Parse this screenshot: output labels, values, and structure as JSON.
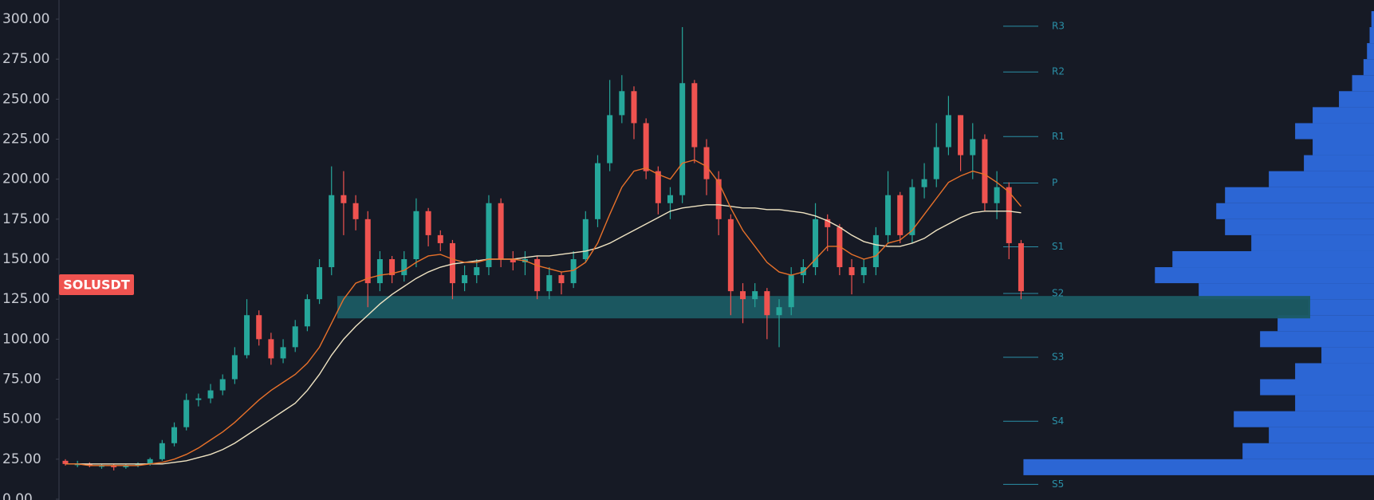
{
  "chart_data": {
    "type": "candlestick",
    "symbol_label": "SOLUSDT",
    "ylim": [
      0,
      300
    ],
    "yticks": [
      {
        "value": 0,
        "label": "0.00"
      },
      {
        "value": 25,
        "label": "25.00"
      },
      {
        "value": 50,
        "label": "50.00"
      },
      {
        "value": 75,
        "label": "75.00"
      },
      {
        "value": 100,
        "label": "100.00"
      },
      {
        "value": 125,
        "label": "125.00"
      },
      {
        "value": 150,
        "label": "150.00"
      },
      {
        "value": 175,
        "label": "175.00"
      },
      {
        "value": 200,
        "label": "200.00"
      },
      {
        "value": 225,
        "label": "225.00"
      },
      {
        "value": 250,
        "label": "250.00"
      },
      {
        "value": 275,
        "label": "275.00"
      },
      {
        "value": 300,
        "label": "300.00"
      }
    ],
    "up_color": "#26a69a",
    "down_color": "#ef5350",
    "open": [
      24,
      22,
      22,
      21,
      21,
      20,
      21,
      22,
      25,
      35,
      45,
      62,
      63,
      68,
      75,
      90,
      115,
      100,
      88,
      95,
      108,
      125,
      145,
      190,
      185,
      175,
      135,
      150,
      140,
      150,
      180,
      165,
      160,
      135,
      140,
      145,
      185,
      150,
      148,
      150,
      130,
      140,
      135,
      150,
      175,
      210,
      240,
      255,
      235,
      205,
      185,
      190,
      260,
      220,
      200,
      175,
      130,
      125,
      130,
      115,
      120,
      140,
      145,
      175,
      170,
      145,
      140,
      145,
      165,
      190,
      165,
      195,
      200,
      220,
      240,
      215,
      225,
      185,
      195,
      160
    ],
    "high": [
      25,
      24,
      23,
      22,
      22,
      22,
      23,
      26,
      37,
      48,
      66,
      66,
      72,
      78,
      95,
      125,
      118,
      104,
      100,
      112,
      128,
      150,
      208,
      205,
      190,
      180,
      155,
      152,
      155,
      188,
      182,
      168,
      162,
      146,
      150,
      190,
      188,
      155,
      155,
      152,
      145,
      142,
      155,
      180,
      215,
      262,
      265,
      258,
      238,
      208,
      195,
      295,
      262,
      225,
      205,
      178,
      135,
      135,
      132,
      125,
      145,
      150,
      185,
      178,
      172,
      150,
      150,
      170,
      205,
      192,
      200,
      210,
      235,
      252,
      240,
      235,
      228,
      205,
      198,
      162
    ],
    "low": [
      21,
      20,
      20,
      19,
      18,
      19,
      20,
      21,
      24,
      33,
      43,
      58,
      60,
      65,
      72,
      88,
      96,
      84,
      85,
      92,
      105,
      122,
      140,
      165,
      168,
      120,
      130,
      135,
      136,
      145,
      158,
      155,
      125,
      130,
      135,
      140,
      145,
      143,
      140,
      125,
      125,
      128,
      132,
      148,
      170,
      205,
      235,
      225,
      200,
      178,
      175,
      185,
      210,
      190,
      165,
      115,
      110,
      120,
      100,
      95,
      115,
      135,
      140,
      155,
      140,
      128,
      135,
      140,
      160,
      160,
      160,
      188,
      195,
      215,
      205,
      200,
      180,
      175,
      150,
      125
    ],
    "close": [
      22,
      22,
      21,
      21,
      20,
      21,
      22,
      25,
      35,
      45,
      62,
      63,
      68,
      75,
      90,
      115,
      100,
      88,
      95,
      108,
      125,
      145,
      190,
      185,
      175,
      135,
      150,
      140,
      150,
      180,
      165,
      160,
      135,
      140,
      145,
      185,
      150,
      148,
      150,
      130,
      140,
      135,
      150,
      175,
      210,
      240,
      255,
      235,
      205,
      185,
      190,
      260,
      220,
      200,
      175,
      130,
      125,
      130,
      115,
      120,
      140,
      145,
      175,
      170,
      145,
      140,
      145,
      165,
      190,
      165,
      195,
      200,
      220,
      240,
      215,
      225,
      185,
      195,
      160,
      130
    ],
    "series": [
      {
        "color": "#efe3c2",
        "values": [
          22,
          22,
          22,
          22,
          22,
          22,
          22,
          22,
          22,
          23,
          24,
          26,
          28,
          31,
          35,
          40,
          45,
          50,
          55,
          60,
          68,
          78,
          90,
          100,
          108,
          115,
          122,
          128,
          133,
          138,
          142,
          145,
          147,
          148,
          149,
          150,
          150,
          150,
          151,
          152,
          152,
          153,
          154,
          155,
          157,
          160,
          164,
          168,
          172,
          176,
          180,
          182,
          183,
          184,
          184,
          183,
          182,
          182,
          181,
          181,
          180,
          179,
          177,
          174,
          170,
          165,
          161,
          159,
          158,
          158,
          160,
          163,
          168,
          172,
          176,
          179,
          180,
          180,
          180,
          179
        ]
      },
      {
        "color": "#e8712a",
        "values": [
          22,
          22,
          21,
          21,
          21,
          21,
          21,
          22,
          23,
          25,
          28,
          32,
          37,
          42,
          48,
          55,
          62,
          68,
          73,
          78,
          85,
          95,
          110,
          125,
          135,
          138,
          140,
          141,
          143,
          148,
          152,
          153,
          150,
          148,
          148,
          150,
          150,
          150,
          149,
          146,
          144,
          142,
          143,
          148,
          160,
          178,
          195,
          205,
          207,
          203,
          200,
          210,
          212,
          208,
          198,
          182,
          168,
          158,
          148,
          142,
          140,
          142,
          150,
          158,
          158,
          153,
          150,
          152,
          160,
          162,
          168,
          178,
          188,
          198,
          202,
          205,
          203,
          198,
          192,
          183
        ]
      }
    ],
    "zone": [
      113,
      127
    ],
    "zone_color": "#1b5b63",
    "pivots": [
      {
        "label": "R3",
        "value": 295.6
      },
      {
        "label": "R2",
        "value": 267
      },
      {
        "label": "R1",
        "value": 226.6
      },
      {
        "label": "P",
        "value": 197.6
      },
      {
        "label": "S1",
        "value": 157.7
      },
      {
        "label": "S2",
        "value": 128.6
      },
      {
        "label": "S3",
        "value": 88.7
      },
      {
        "label": "S4",
        "value": 48.7
      },
      {
        "label": "S5",
        "value": 9.3
      }
    ],
    "pivot_color": "#2a8fa6",
    "volume_profile": {
      "color": "#2f6fe8",
      "levels": [
        20,
        30,
        40,
        50,
        60,
        70,
        80,
        90,
        100,
        110,
        120,
        130,
        140,
        150,
        160,
        170,
        180,
        190,
        200,
        210,
        220,
        230,
        240,
        250,
        260,
        270,
        280,
        290,
        300
      ],
      "volumes": [
        400,
        150,
        120,
        160,
        90,
        130,
        90,
        60,
        130,
        110,
        75,
        200,
        250,
        230,
        140,
        170,
        180,
        170,
        120,
        80,
        70,
        90,
        70,
        40,
        25,
        12,
        8,
        5,
        3
      ]
    }
  }
}
